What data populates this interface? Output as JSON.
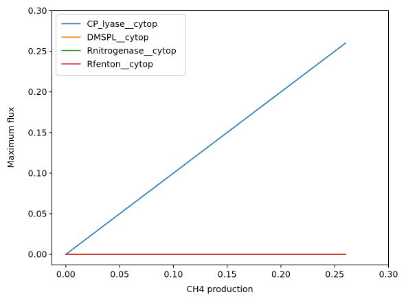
{
  "chart_data": {
    "type": "line",
    "xlabel": "CH4 production",
    "ylabel": "Maximum flux",
    "xlim": [
      -0.013,
      0.3
    ],
    "ylim": [
      -0.013,
      0.3
    ],
    "xticks": [
      0.0,
      0.05,
      0.1,
      0.15,
      0.2,
      0.25,
      0.3
    ],
    "xtick_labels": [
      "0.00",
      "0.05",
      "0.10",
      "0.15",
      "0.20",
      "0.25",
      "0.30"
    ],
    "yticks": [
      0.0,
      0.05,
      0.1,
      0.15,
      0.2,
      0.25,
      0.3
    ],
    "ytick_labels": [
      "0.00",
      "0.05",
      "0.10",
      "0.15",
      "0.20",
      "0.25",
      "0.30"
    ],
    "grid": false,
    "legend_position": "top-left",
    "series": [
      {
        "name": "CP_lyase__cytop",
        "color": "#1f77b4",
        "x": [
          0.0,
          0.26
        ],
        "y": [
          0.0,
          0.26
        ]
      },
      {
        "name": "DMSPL__cytop",
        "color": "#ff7f0e",
        "x": [
          0.0,
          0.26
        ],
        "y": [
          0.0,
          0.0
        ]
      },
      {
        "name": "Rnitrogenase__cytop",
        "color": "#2ca02c",
        "x": [
          0.0,
          0.26
        ],
        "y": [
          0.0,
          0.0
        ]
      },
      {
        "name": "Rfenton__cytop",
        "color": "#d62728",
        "x": [
          0.0,
          0.26
        ],
        "y": [
          0.0,
          0.0
        ]
      }
    ]
  }
}
